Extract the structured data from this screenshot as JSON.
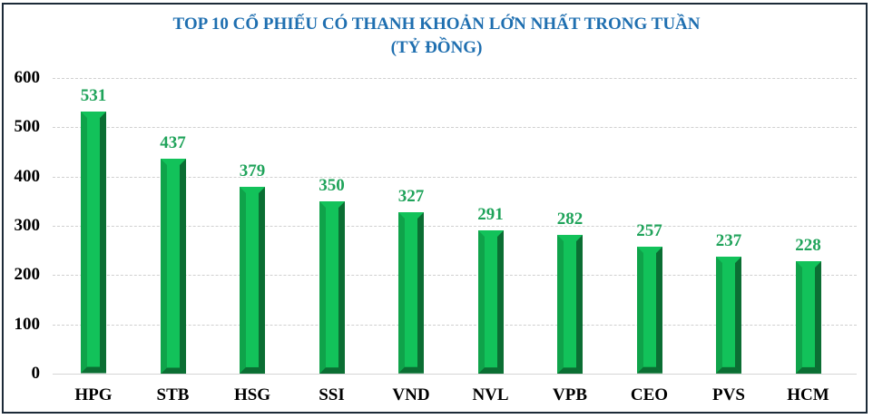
{
  "chart_data": {
    "type": "bar",
    "title": "TOP 10 CỔ PHIẾU CÓ THANH KHOẢN LỚN NHẤT TRONG TUẦN",
    "subtitle": "(TỶ ĐỒNG)",
    "xlabel": "",
    "ylabel": "",
    "categories": [
      "HPG",
      "STB",
      "HSG",
      "SSI",
      "VND",
      "NVL",
      "VPB",
      "CEO",
      "PVS",
      "HCM"
    ],
    "values": [
      531,
      437,
      379,
      350,
      327,
      291,
      282,
      257,
      237,
      228
    ],
    "ylim": [
      0,
      600
    ],
    "yticks": [
      0,
      100,
      200,
      300,
      400,
      500,
      600
    ],
    "grid": true,
    "grid_style": "dashed",
    "legend": "none",
    "data_labels": true,
    "colors": {
      "title": "#1f6fb0",
      "bar_front": "#0fa34a",
      "bar_highlight": "#12c25a",
      "bar_shade": "#0b6e33",
      "data_label": "#1fa35a",
      "axis_text": "#000000"
    }
  },
  "header": {
    "title_line1": "TOP 10 CỔ PHIẾU CÓ THANH KHOẢN LỚN NHẤT TRONG TUẦN",
    "title_line2": "(TỶ ĐỒNG)"
  },
  "yaxis": {
    "ticks": [
      "0",
      "100",
      "200",
      "300",
      "400",
      "500",
      "600"
    ]
  },
  "bars": [
    {
      "label": "HPG",
      "value": "531"
    },
    {
      "label": "STB",
      "value": "437"
    },
    {
      "label": "HSG",
      "value": "379"
    },
    {
      "label": "SSI",
      "value": "350"
    },
    {
      "label": "VND",
      "value": "327"
    },
    {
      "label": "NVL",
      "value": "291"
    },
    {
      "label": "VPB",
      "value": "282"
    },
    {
      "label": "CEO",
      "value": "257"
    },
    {
      "label": "PVS",
      "value": "237"
    },
    {
      "label": "HCM",
      "value": "228"
    }
  ]
}
